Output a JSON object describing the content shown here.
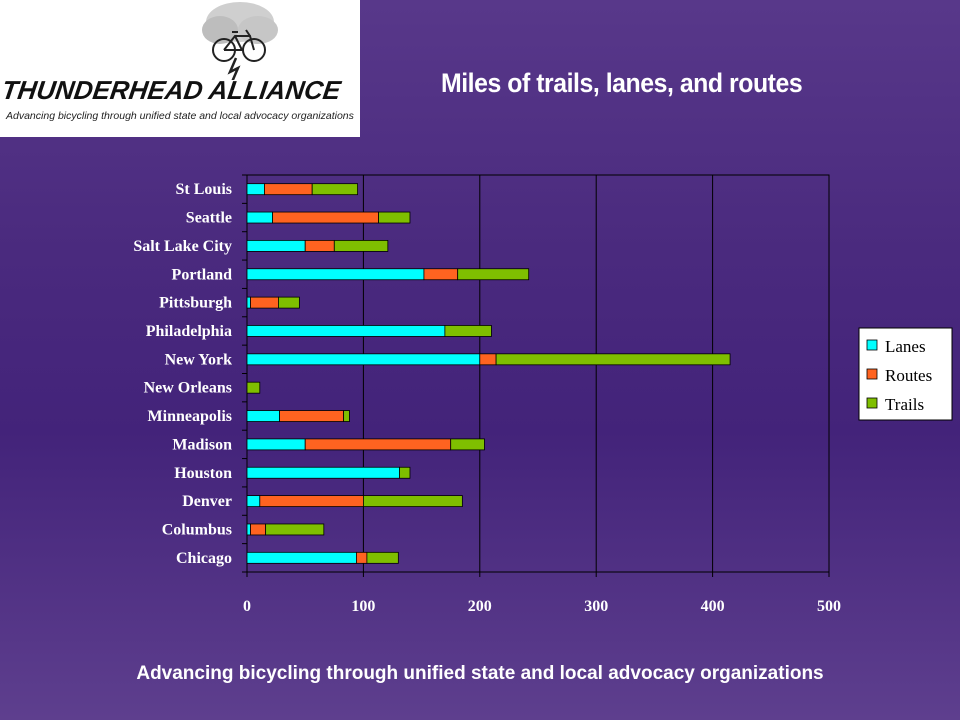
{
  "title": "Miles of trails, lanes, and routes",
  "footer": "Advancing bicycling through unified state and local advocacy organizations",
  "logo": {
    "name": "THUNDERHEAD ALLIANCE",
    "tagline": "Advancing bicycling through unified state and local advocacy organizations"
  },
  "colors": {
    "lanes": "#00ffff",
    "routes": "#ff6320",
    "trails": "#7fbf00",
    "grid": "#000000",
    "text": "#ffffff"
  },
  "chart_data": {
    "type": "bar",
    "orientation": "horizontal",
    "stacked": true,
    "title": "",
    "xlabel": "",
    "ylabel": "",
    "xlim": [
      0,
      500
    ],
    "xticks": [
      0,
      100,
      200,
      300,
      400,
      500
    ],
    "grid": true,
    "legend_position": "right",
    "categories": [
      "St Louis",
      "Seattle",
      "Salt Lake City",
      "Portland",
      "Pittsburgh",
      "Philadelphia",
      "New York",
      "New Orleans",
      "Minneapolis",
      "Madison",
      "Houston",
      "Denver",
      "Columbus",
      "Chicago"
    ],
    "series": [
      {
        "name": "Lanes",
        "color": "#00ffff",
        "values": [
          15,
          22,
          50,
          152,
          3,
          170,
          200,
          0,
          28,
          50,
          131,
          11,
          3,
          94
        ]
      },
      {
        "name": "Routes",
        "color": "#ff6320",
        "values": [
          41,
          91,
          25,
          29,
          24,
          0,
          14,
          0,
          55,
          125,
          0,
          89,
          13,
          9
        ]
      },
      {
        "name": "Trails",
        "color": "#7fbf00",
        "values": [
          39,
          27,
          46,
          61,
          18,
          40,
          201,
          11,
          5,
          29,
          9,
          85,
          50,
          27
        ]
      }
    ]
  }
}
